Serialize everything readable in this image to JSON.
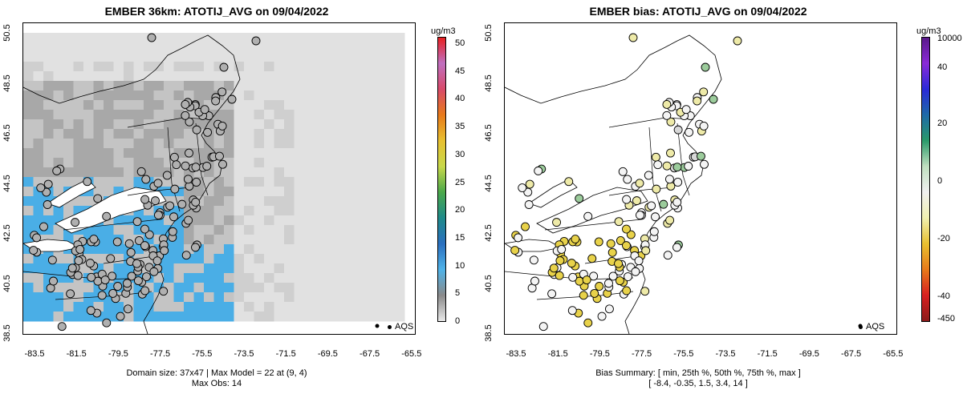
{
  "left_panel": {
    "title": "EMBER 36km: ATOTIJ_AVG on 09/04/2022",
    "colorbar_unit": "ug/m3",
    "colorbar_labels": [
      "50",
      "45",
      "40",
      "35",
      "30",
      "25",
      "20",
      "15",
      "10",
      "5",
      "0"
    ],
    "colorbar_colors": [
      "#e8e8e8",
      "#8a8a8a",
      "#4fb3e8",
      "#2a6fbf",
      "#1e8a8a",
      "#4aa84a",
      "#c8d84a",
      "#e8c030",
      "#e87a1a",
      "#d84a6a",
      "#c070c0",
      "#e82020"
    ],
    "caption_line1": "Domain size: 37x47 | Max Model = 22 at (9, 4)",
    "caption_line2": "Max Obs: 14",
    "legend_label": "AQS"
  },
  "right_panel": {
    "title": "EMBER bias: ATOTIJ_AVG on 09/04/2022",
    "colorbar_unit": "ug/m3",
    "colorbar_labels": [
      "10000",
      "40",
      "20",
      "0",
      "-20",
      "-40",
      "-450"
    ],
    "colorbar_colors": [
      "#8b1a1a",
      "#d82020",
      "#e87a1a",
      "#e8c030",
      "#f0f0b0",
      "#f0f0f0",
      "#c0e0c0",
      "#2a9a6a",
      "#1e6aa8",
      "#2a2ad8",
      "#8a2ad8",
      "#5a1a8a"
    ],
    "caption_line1": "Bias Summary: [ min, 25th %, 50th %, 75th %, max ]",
    "caption_line2": "[ -8.4,   -0.35,   1.5,   3.4,   14 ]",
    "legend_label": "AQS"
  },
  "axes": {
    "y_ticks": [
      "38.5",
      "40.5",
      "42.5",
      "44.5",
      "46.5",
      "48.5",
      "50.5"
    ],
    "x_ticks": [
      "-83.5",
      "-81.5",
      "-79.5",
      "-77.5",
      "-75.5",
      "-73.5",
      "-71.5",
      "-69.5",
      "-67.5",
      "-65.5"
    ]
  },
  "colors": {
    "model_light": "#e1e1e1",
    "model_mid": "#a8a8a8",
    "model_blue": "#4aaee6",
    "obs_gray": "#b0b0b0",
    "bias_yellow": "#e8d24a",
    "bias_green": "#9ccc9c"
  }
}
